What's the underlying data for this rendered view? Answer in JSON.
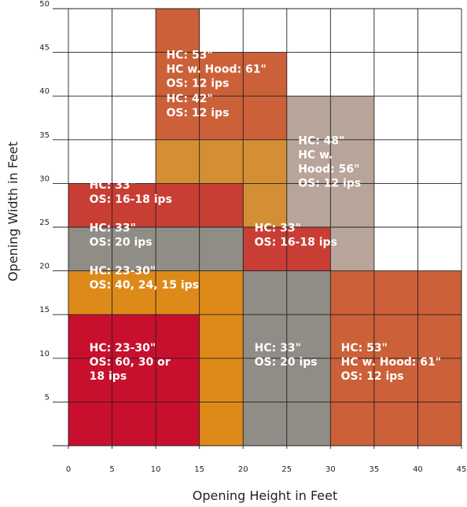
{
  "chart_data": {
    "type": "heatmap",
    "title": "",
    "xlabel": "Opening Height in Feet",
    "ylabel": "Opening Width in Feet",
    "xlim": [
      0,
      45
    ],
    "ylim": [
      0,
      50
    ],
    "xticks": [
      0,
      5,
      10,
      15,
      20,
      25,
      30,
      35,
      40,
      45
    ],
    "yticks": [
      5,
      10,
      15,
      20,
      25,
      30,
      35,
      40,
      45,
      50
    ],
    "grid": true,
    "colors": {
      "crimson": "#c8102e",
      "orange": "#de8a19",
      "gray": "#908d87",
      "red": "#c83e34",
      "orange_red": "#cc6038",
      "amber": "#d48f34",
      "taupe": "#b7a599",
      "grid": "#222222"
    },
    "regions": [
      {
        "x": [
          0,
          15
        ],
        "y": [
          0,
          15
        ],
        "color": "crimson"
      },
      {
        "x": [
          15,
          20
        ],
        "y": [
          0,
          15
        ],
        "color": "orange"
      },
      {
        "x": [
          0,
          20
        ],
        "y": [
          15,
          20
        ],
        "color": "orange"
      },
      {
        "x": [
          20,
          30
        ],
        "y": [
          0,
          20
        ],
        "color": "gray"
      },
      {
        "x": [
          30,
          45
        ],
        "y": [
          0,
          20
        ],
        "color": "orange_red"
      },
      {
        "x": [
          0,
          20
        ],
        "y": [
          20,
          25
        ],
        "color": "gray"
      },
      {
        "x": [
          0,
          15
        ],
        "y": [
          25,
          30
        ],
        "color": "red"
      },
      {
        "x": [
          15,
          20
        ],
        "y": [
          25,
          30
        ],
        "color": "red"
      },
      {
        "x": [
          20,
          25
        ],
        "y": [
          20,
          25
        ],
        "color": "red"
      },
      {
        "x": [
          25,
          30
        ],
        "y": [
          20,
          25
        ],
        "color": "red"
      },
      {
        "x": [
          20,
          25
        ],
        "y": [
          25,
          35
        ],
        "color": "amber"
      },
      {
        "x": [
          10,
          20
        ],
        "y": [
          30,
          35
        ],
        "color": "amber"
      },
      {
        "x": [
          10,
          15
        ],
        "y": [
          35,
          50
        ],
        "color": "orange_red"
      },
      {
        "x": [
          15,
          25
        ],
        "y": [
          35,
          45
        ],
        "color": "orange_red"
      },
      {
        "x": [
          25,
          35
        ],
        "y": [
          25,
          40
        ],
        "color": "taupe"
      },
      {
        "x": [
          30,
          35
        ],
        "y": [
          20,
          25
        ],
        "color": "taupe"
      }
    ],
    "annotations": [
      {
        "x": 2.4,
        "y": 10.8,
        "lines": [
          "HC: 23-30\"",
          "OS: 60, 30 or",
          "18 ips"
        ]
      },
      {
        "x": 2.4,
        "y": 19.6,
        "lines": [
          "HC: 23-30\"",
          "OS: 40, 24, 15 ips"
        ]
      },
      {
        "x": 2.4,
        "y": 24.5,
        "lines": [
          "HC: 33\"",
          "OS: 20 ips"
        ]
      },
      {
        "x": 2.4,
        "y": 29.4,
        "lines": [
          "HC: 33\"",
          "OS: 16-18 ips"
        ]
      },
      {
        "x": 11.2,
        "y": 39.3,
        "lines": [
          "HC: 42\"",
          "OS: 12 ips"
        ]
      },
      {
        "x": 11.2,
        "y": 44.3,
        "lines": [
          "HC: 53\"",
          "HC w. Hood: 61\"",
          "OS: 12 ips"
        ]
      },
      {
        "x": 21.3,
        "y": 24.5,
        "lines": [
          "HC: 33\"",
          "OS: 16-18 ips"
        ]
      },
      {
        "x": 21.3,
        "y": 10.8,
        "lines": [
          "HC: 33\"",
          "OS: 20 ips"
        ]
      },
      {
        "x": 26.3,
        "y": 34.5,
        "lines": [
          "HC: 48\"",
          "HC w.",
          "Hood: 56\"",
          "OS: 12 ips"
        ]
      },
      {
        "x": 31.2,
        "y": 10.8,
        "lines": [
          "HC: 53\"",
          "HC w. Hood: 61\"",
          "OS: 12 ips"
        ]
      }
    ]
  }
}
